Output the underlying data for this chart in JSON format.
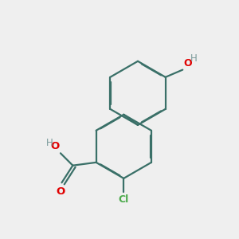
{
  "background_color": "#efefef",
  "bond_color": "#3a7068",
  "atom_colors": {
    "O": "#e00000",
    "Cl": "#4caa4c",
    "H": "#7a9a9a"
  },
  "figsize": [
    3.0,
    3.0
  ],
  "dpi": 100
}
